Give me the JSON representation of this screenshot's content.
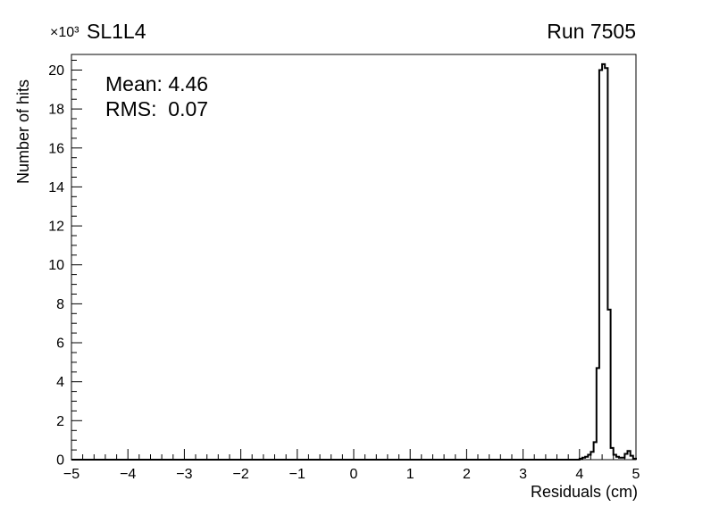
{
  "header": {
    "run_label": "Run 7505"
  },
  "stats": {
    "mean": "Mean: 4.46",
    "rms": "RMS:  0.07"
  },
  "chart_data": {
    "type": "histogram",
    "title": "SL1L4",
    "xlabel": "Residuals (cm)",
    "ylabel": "Number of hits",
    "y_axis_multiplier": "×10³",
    "xlim": [
      -5,
      5
    ],
    "ylim": [
      0,
      20800
    ],
    "grid": false,
    "legend": "none",
    "x_ticks": {
      "values": [
        -5,
        -4,
        -3,
        -2,
        -1,
        0,
        1,
        2,
        3,
        4,
        5
      ],
      "labels": [
        "−5",
        "−4",
        "−3",
        "−2",
        "−1",
        "0",
        "1",
        "2",
        "3",
        "4",
        "5"
      ]
    },
    "y_ticks": {
      "values": [
        0,
        2000,
        4000,
        6000,
        8000,
        10000,
        12000,
        14000,
        16000,
        18000,
        20000
      ],
      "labels": [
        "0",
        "2",
        "4",
        "6",
        "8",
        "10",
        "12",
        "14",
        "16",
        "18",
        "20"
      ]
    },
    "x_minor_step": 0.2,
    "y_minor_step": 500,
    "mean": 4.46,
    "rms": 0.07,
    "bins": {
      "start": 4.0,
      "width": 0.05,
      "counts": [
        50,
        100,
        150,
        250,
        400,
        900,
        4700,
        20000,
        20300,
        20100,
        7700,
        600,
        250,
        150,
        100,
        100,
        300,
        450,
        200,
        50
      ]
    },
    "line_color": "#000000",
    "background_color": "#ffffff"
  }
}
